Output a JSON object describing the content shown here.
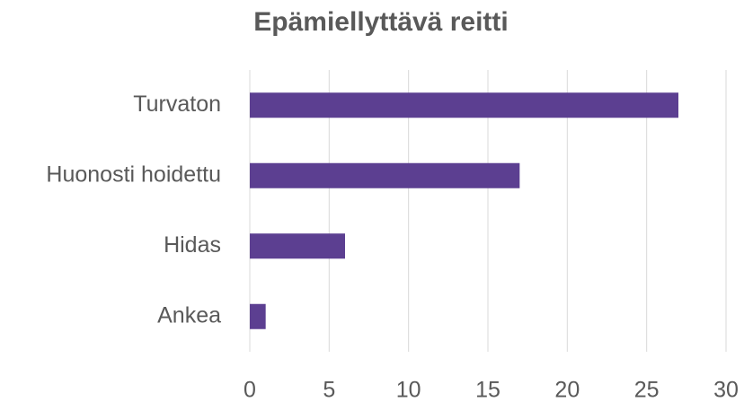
{
  "chart_data": {
    "type": "bar",
    "orientation": "horizontal",
    "title": "Epämiellyttävä reitti",
    "categories": [
      "Turvaton",
      "Huonosti hoidettu",
      "Hidas",
      "Ankea"
    ],
    "values": [
      27,
      17,
      6,
      1
    ],
    "color": "#5c3f91",
    "xlim": [
      0,
      30
    ],
    "xticks": [
      0,
      5,
      10,
      15,
      20,
      25,
      30
    ],
    "grid": true
  }
}
